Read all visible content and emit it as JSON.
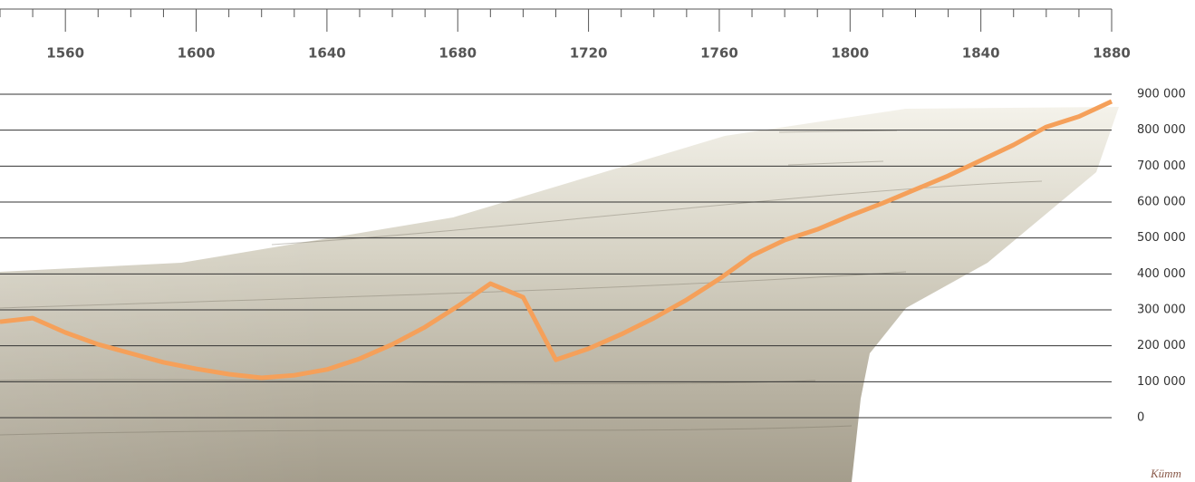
{
  "chart_data": {
    "type": "line",
    "x": [
      1540,
      1550,
      1560,
      1570,
      1580,
      1590,
      1600,
      1610,
      1620,
      1630,
      1640,
      1650,
      1660,
      1670,
      1680,
      1690,
      1700,
      1710,
      1720,
      1730,
      1740,
      1750,
      1760,
      1770,
      1780,
      1790,
      1800,
      1810,
      1820,
      1830,
      1840,
      1850,
      1860,
      1870,
      1880
    ],
    "values": [
      267000,
      277000,
      237000,
      204000,
      179000,
      154000,
      136000,
      121000,
      111000,
      118000,
      134000,
      164000,
      204000,
      252000,
      310000,
      373000,
      335000,
      161000,
      192000,
      232000,
      277000,
      328000,
      386000,
      451000,
      494000,
      524000,
      562000,
      597000,
      635000,
      673000,
      716000,
      759000,
      809000,
      838000,
      880000
    ],
    "color": "#f5a05a",
    "xlim": [
      1540,
      1880
    ],
    "xticks": [
      1560,
      1600,
      1640,
      1680,
      1720,
      1760,
      1800,
      1840,
      1880
    ],
    "xminorticks": [
      1540,
      1550,
      1570,
      1580,
      1590,
      1610,
      1620,
      1630,
      1650,
      1660,
      1670,
      1690,
      1700,
      1710,
      1730,
      1740,
      1750,
      1770,
      1780,
      1790,
      1810,
      1820,
      1830,
      1850,
      1860,
      1870
    ],
    "ylim": [
      0,
      900000
    ],
    "yticks": [
      0,
      {
        "value": 100000,
        "label": "100 000"
      },
      {
        "value": 200000,
        "label": "200 000"
      },
      {
        "value": 300000,
        "label": "300 000"
      },
      {
        "value": 400000,
        "label": "400 000"
      },
      {
        "value": 500000,
        "label": "500 000"
      },
      {
        "value": 600000,
        "label": "600 000"
      },
      {
        "value": 700000,
        "label": "700 000"
      },
      {
        "value": 800000,
        "label": "800 000"
      },
      {
        "value": 900000,
        "label": "900 000"
      }
    ],
    "grid": true,
    "source": "Kümm"
  }
}
